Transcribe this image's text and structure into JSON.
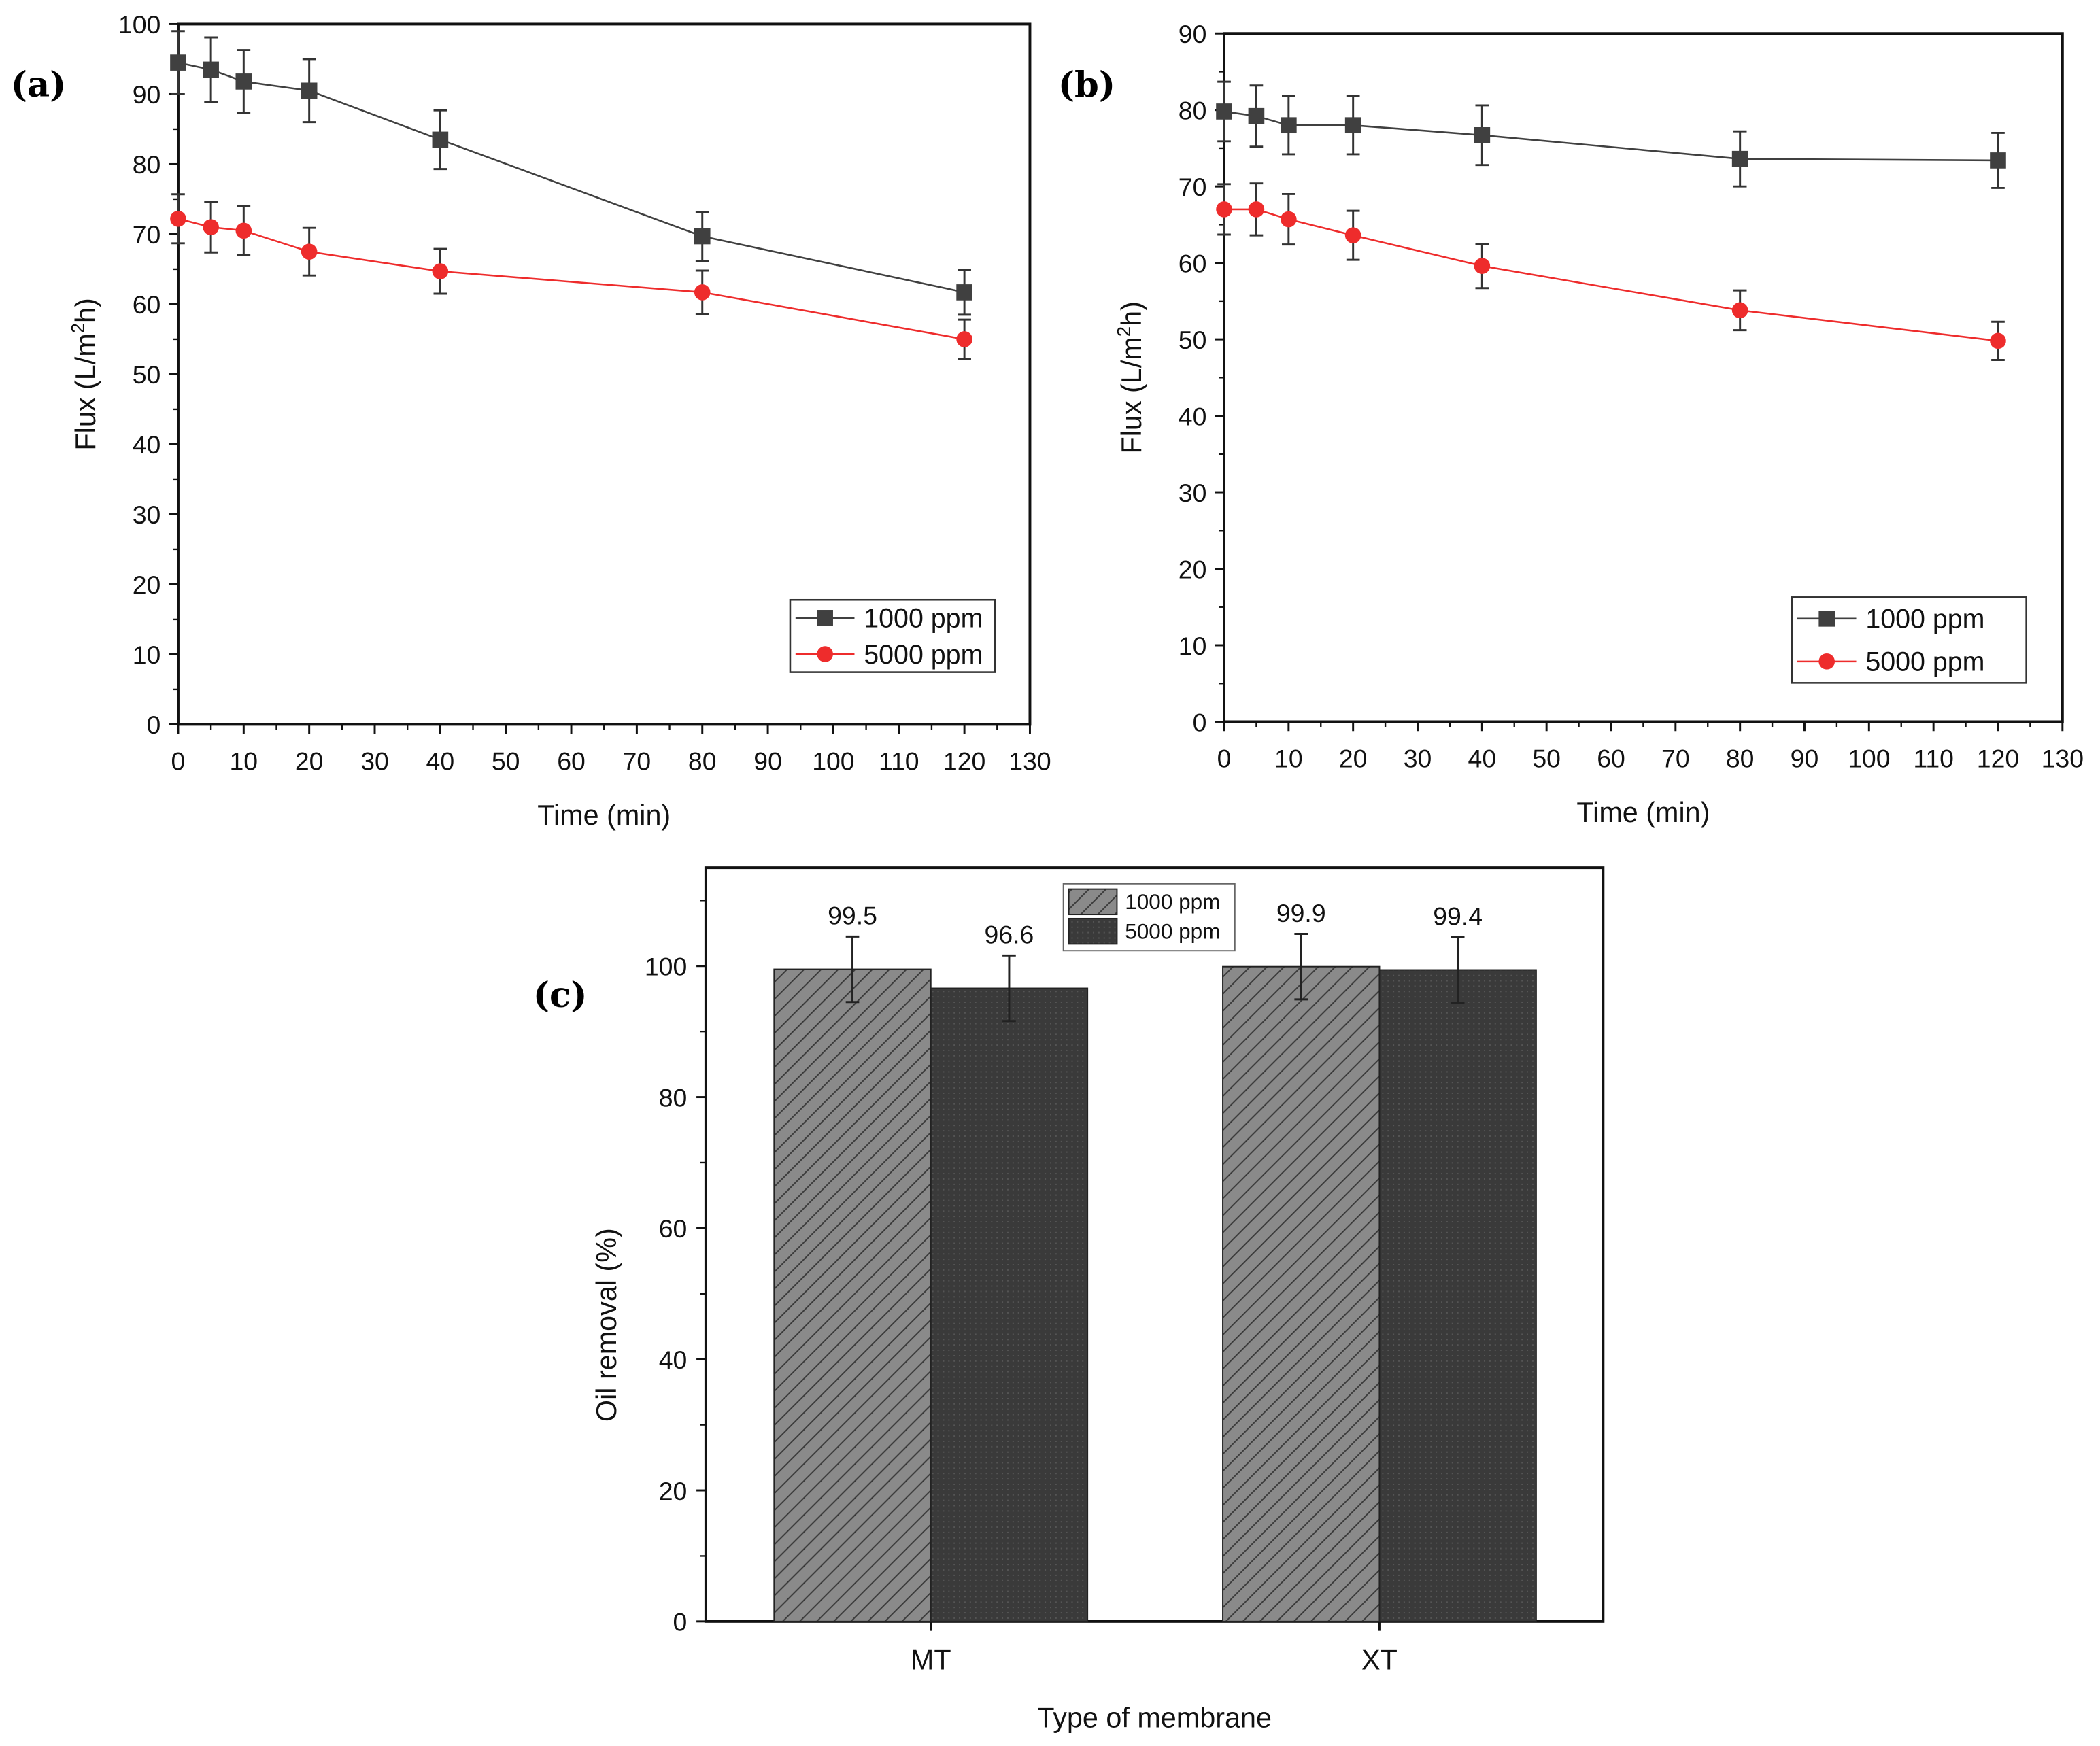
{
  "chart_data": [
    {
      "type": "line",
      "panel_label": "(a)",
      "xlabel": "Time (min)",
      "ylabel": "Flux (L/m2h)",
      "ylabel_parts": [
        "Flux (L/m",
        "2",
        "h)"
      ],
      "xlim": [
        0,
        130
      ],
      "ylim": [
        0,
        100
      ],
      "xticks": [
        "0",
        "10",
        "20",
        "30",
        "40",
        "50",
        "60",
        "70",
        "80",
        "90",
        "100",
        "110",
        "120",
        "130"
      ],
      "yticks": [
        "0",
        "10",
        "20",
        "30",
        "40",
        "50",
        "60",
        "70",
        "80",
        "90",
        "100"
      ],
      "legend_position": "bottom-right",
      "x": [
        0,
        5,
        10,
        20,
        40,
        80,
        120
      ],
      "series": [
        {
          "name": "1000 ppm",
          "marker": "square",
          "color": "#404040",
          "values": [
            94.5,
            93.5,
            91.8,
            90.5,
            83.5,
            69.7,
            61.7
          ],
          "errors": [
            4.5,
            4.6,
            4.5,
            4.5,
            4.2,
            3.5,
            3.2
          ]
        },
        {
          "name": "5000 ppm",
          "marker": "circle",
          "color": "#ee2c2c",
          "values": [
            72.2,
            71.0,
            70.5,
            67.5,
            64.7,
            61.7,
            55.0
          ],
          "errors": [
            3.5,
            3.6,
            3.5,
            3.4,
            3.2,
            3.1,
            2.8
          ]
        }
      ]
    },
    {
      "type": "line",
      "panel_label": "(b)",
      "xlabel": "Time (min)",
      "ylabel": "Flux (L/m2h)",
      "ylabel_parts": [
        "Flux (L/m",
        "2",
        "h)"
      ],
      "xlim": [
        0,
        130
      ],
      "ylim": [
        0,
        90
      ],
      "xticks": [
        "0",
        "10",
        "20",
        "30",
        "40",
        "50",
        "60",
        "70",
        "80",
        "90",
        "100",
        "110",
        "120",
        "130"
      ],
      "yticks": [
        "0",
        "10",
        "20",
        "30",
        "40",
        "50",
        "60",
        "70",
        "80",
        "90"
      ],
      "legend_position": "bottom-right",
      "x": [
        0,
        5,
        10,
        20,
        40,
        80,
        120
      ],
      "series": [
        {
          "name": "1000 ppm",
          "marker": "square",
          "color": "#404040",
          "values": [
            79.8,
            79.2,
            78.0,
            78.0,
            76.7,
            73.6,
            73.4
          ],
          "errors": [
            3.9,
            4.0,
            3.8,
            3.8,
            3.9,
            3.6,
            3.6
          ]
        },
        {
          "name": "5000 ppm",
          "marker": "circle",
          "color": "#ee2c2c",
          "values": [
            67.0,
            67.0,
            65.7,
            63.6,
            59.6,
            53.8,
            49.8
          ],
          "errors": [
            3.3,
            3.4,
            3.3,
            3.2,
            2.9,
            2.6,
            2.5
          ]
        }
      ]
    },
    {
      "type": "bar",
      "panel_label": "(c)",
      "xlabel": "Type of membrane",
      "ylabel": "Oil removal (%)",
      "categories": [
        "MT",
        "XT"
      ],
      "ylim": [
        0,
        115
      ],
      "yticks": [
        "0",
        "20",
        "40",
        "60",
        "80",
        "100"
      ],
      "legend_position": "top-center",
      "series": [
        {
          "name": "1000 ppm",
          "pattern": "hatched",
          "color": "#808080",
          "values": [
            99.5,
            99.9
          ],
          "errors": [
            5.0,
            5.0
          ],
          "labels": [
            "99.5",
            "99.9"
          ]
        },
        {
          "name": "5000 ppm",
          "pattern": "dotted",
          "color": "#3a3a3a",
          "values": [
            96.6,
            99.4
          ],
          "errors": [
            5.0,
            5.0
          ],
          "labels": [
            "96.6",
            "99.4"
          ]
        }
      ]
    }
  ]
}
